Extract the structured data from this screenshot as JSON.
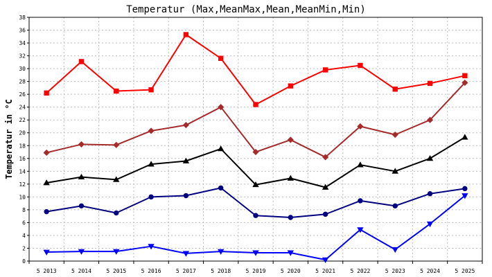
{
  "chart_data": {
    "type": "line",
    "title": "Temperatur (Max,MeanMax,Mean,MeanMin,Min)",
    "xlabel": "",
    "ylabel": "Temperatur in °C",
    "ylim": [
      0,
      38
    ],
    "yticks": [
      0,
      2,
      4,
      6,
      8,
      10,
      12,
      14,
      16,
      18,
      20,
      22,
      24,
      26,
      28,
      30,
      32,
      34,
      36,
      38
    ],
    "grid": true,
    "categories": [
      "5 2013",
      "5 2014",
      "5 2015",
      "5 2016",
      "5 2017",
      "5 2018",
      "5 2019",
      "5 2020",
      "5 2021",
      "5 2022",
      "5 2023",
      "5 2024",
      "5 2025"
    ],
    "series": [
      {
        "key": "max",
        "color": "#ff0000",
        "marker": "square",
        "values": [
          26.2,
          31.1,
          26.5,
          26.7,
          35.3,
          31.6,
          24.4,
          27.3,
          29.8,
          30.5,
          26.8,
          27.7,
          28.9
        ]
      },
      {
        "key": "meanmax",
        "color": "#a52a2a",
        "marker": "diamond",
        "values": [
          16.9,
          18.2,
          18.1,
          20.3,
          21.2,
          24.0,
          17.0,
          18.9,
          16.2,
          21.0,
          19.7,
          22.0,
          27.8
        ]
      },
      {
        "key": "mean",
        "color": "#000000",
        "marker": "triangle-up",
        "values": [
          12.2,
          13.1,
          12.7,
          15.1,
          15.6,
          17.5,
          11.9,
          12.9,
          11.5,
          15.0,
          14.0,
          16.0,
          19.3
        ]
      },
      {
        "key": "meanmin",
        "color": "#000080",
        "marker": "circle",
        "values": [
          7.7,
          8.6,
          7.5,
          10.0,
          10.2,
          11.4,
          7.1,
          6.8,
          7.3,
          9.4,
          8.6,
          10.5,
          11.3
        ]
      },
      {
        "key": "min",
        "color": "#0000ff",
        "marker": "triangle-down",
        "values": [
          1.4,
          1.5,
          1.5,
          2.3,
          1.2,
          1.5,
          1.3,
          1.3,
          0.2,
          4.9,
          1.8,
          5.8,
          10.2
        ]
      }
    ]
  }
}
